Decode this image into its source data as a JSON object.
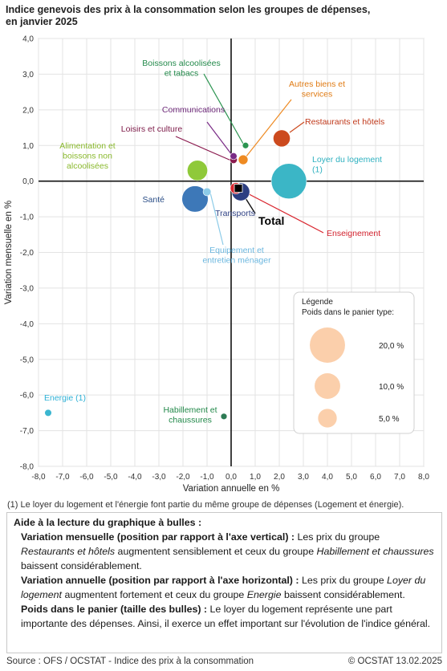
{
  "title_line1": "Indice genevois des prix à la consommation selon les groupes de dépenses,",
  "title_line2": "en janvier 2025",
  "chart_data": {
    "type": "scatter",
    "xlabel": "Variation annuelle en %",
    "ylabel": "Variation mensuelle en %",
    "xlim": [
      -8.0,
      8.0
    ],
    "ylim": [
      -8.0,
      4.0
    ],
    "xticks": [
      "-8,0",
      "-7,0",
      "-6,0",
      "-5,0",
      "-4,0",
      "-3,0",
      "-2,0",
      "-1,0",
      "0,0",
      "1,0",
      "2,0",
      "3,0",
      "4,0",
      "5,0",
      "6,0",
      "7,0",
      "8,0"
    ],
    "yticks": [
      "4,0",
      "3,0",
      "2,0",
      "1,0",
      "0,0",
      "-1,0",
      "-2,0",
      "-3,0",
      "-4,0",
      "-5,0",
      "-6,0",
      "-7,0",
      "-8,0"
    ],
    "grid": true,
    "bubbles": [
      {
        "label": "Loyer du logement\n(1)",
        "x": 2.4,
        "y": 0.0,
        "weight": 20.0,
        "color": "#3bb6c6",
        "label_color": "#2fb1c0"
      },
      {
        "label": "Restaurants et hôtels",
        "x": 2.1,
        "y": 1.2,
        "weight": 4.0,
        "color": "#cc4a1e",
        "label_color": "#c0391b"
      },
      {
        "label": "Autres biens et\nservices",
        "x": 0.5,
        "y": 0.6,
        "weight": 1.0,
        "color": "#ee8a22",
        "label_color": "#e07b14"
      },
      {
        "label": "Boissons alcoolisées\net tabacs",
        "x": 0.6,
        "y": 1.0,
        "weight": 0.3,
        "color": "#2b9450",
        "label_color": "#22894a"
      },
      {
        "label": "Communications",
        "x": 0.1,
        "y": 0.7,
        "weight": 0.4,
        "color": "#7a2b86",
        "label_color": "#6e2a7a"
      },
      {
        "label": "Loisirs et culture",
        "x": 0.1,
        "y": 0.6,
        "weight": 0.5,
        "color": "#8b1b4f",
        "label_color": "#7d1a48"
      },
      {
        "label": "Alimentation et\nboissons non\nalcoolisées",
        "x": -1.4,
        "y": 0.3,
        "weight": 6.0,
        "color": "#8fc93a",
        "label_color": "#8ab92d"
      },
      {
        "label": "Santé",
        "x": -1.5,
        "y": -0.5,
        "weight": 10.5,
        "color": "#3d78b8",
        "label_color": "#2a4d86"
      },
      {
        "label": "Equipement et\nentretien ménager",
        "x": -1.0,
        "y": -0.3,
        "weight": 0.6,
        "color": "#8ccbe8",
        "label_color": "#6cb7df"
      },
      {
        "label": "Transports",
        "x": 0.4,
        "y": -0.3,
        "weight": 4.5,
        "color": "#2d3f82",
        "label_color": "#2d3f82"
      },
      {
        "label": "Enseignement",
        "x": 0.2,
        "y": -0.2,
        "weight": 1.5,
        "color": "#d9262f",
        "label_color": "#d11f2b"
      },
      {
        "label": "Energie (1)",
        "x": -7.6,
        "y": -6.5,
        "weight": 0.4,
        "color": "#3bb6d0",
        "label_color": "#2fb1d6"
      },
      {
        "label": "Habillement et\nchaussures",
        "x": -0.3,
        "y": -6.6,
        "weight": 0.3,
        "color": "#2d7a54",
        "label_color": "#22894a"
      }
    ],
    "total": {
      "label": "Total",
      "x": 0.3,
      "y": -0.2
    },
    "legend": {
      "title": "Légende",
      "subtitle": "Poids dans le panier type:",
      "entries": [
        {
          "label": "20,0 %",
          "weight": 20.0
        },
        {
          "label": "10,0 %",
          "weight": 10.0
        },
        {
          "label": "5,0 %",
          "weight": 5.0
        }
      ],
      "color": "#fbcfab",
      "placement": "bottom-right"
    }
  },
  "footnote": "(1) Le loyer du logement et l'énergie font partie du même groupe de dépenses (Logement et énergie).",
  "help": {
    "heading": "Aide à la lecture du graphique à bulles :",
    "block1_title": "Variation mensuelle (position par rapport à l'axe vertical) :",
    "block1_a": "Les prix du groupe",
    "block1_em1": "Restaurants et hôtels",
    "block1_b": "augmentent sensiblement et ceux du groupe",
    "block1_em2": "Habillement et chaussures",
    "block1_c": "baissent considérablement.",
    "block2_title": "Variation annuelle (position par rapport à l'axe horizontal) :",
    "block2_a": "Les prix du groupe",
    "block2_em1": "Loyer du logement",
    "block2_b": "augmentent fortement et ceux du groupe",
    "block2_em2": "Energie",
    "block2_c": "baissent considérablement.",
    "block3_title": "Poids dans le panier (taille des bulles) :",
    "block3_text": "Le loyer du logement représente une part importante des dépenses. Ainsi, il exerce un effet important sur l'évolution de l'indice général."
  },
  "source": "Source : OFS / OCSTAT - Indice des prix à la consommation",
  "copyright": "© OCSTAT 13.02.2025"
}
